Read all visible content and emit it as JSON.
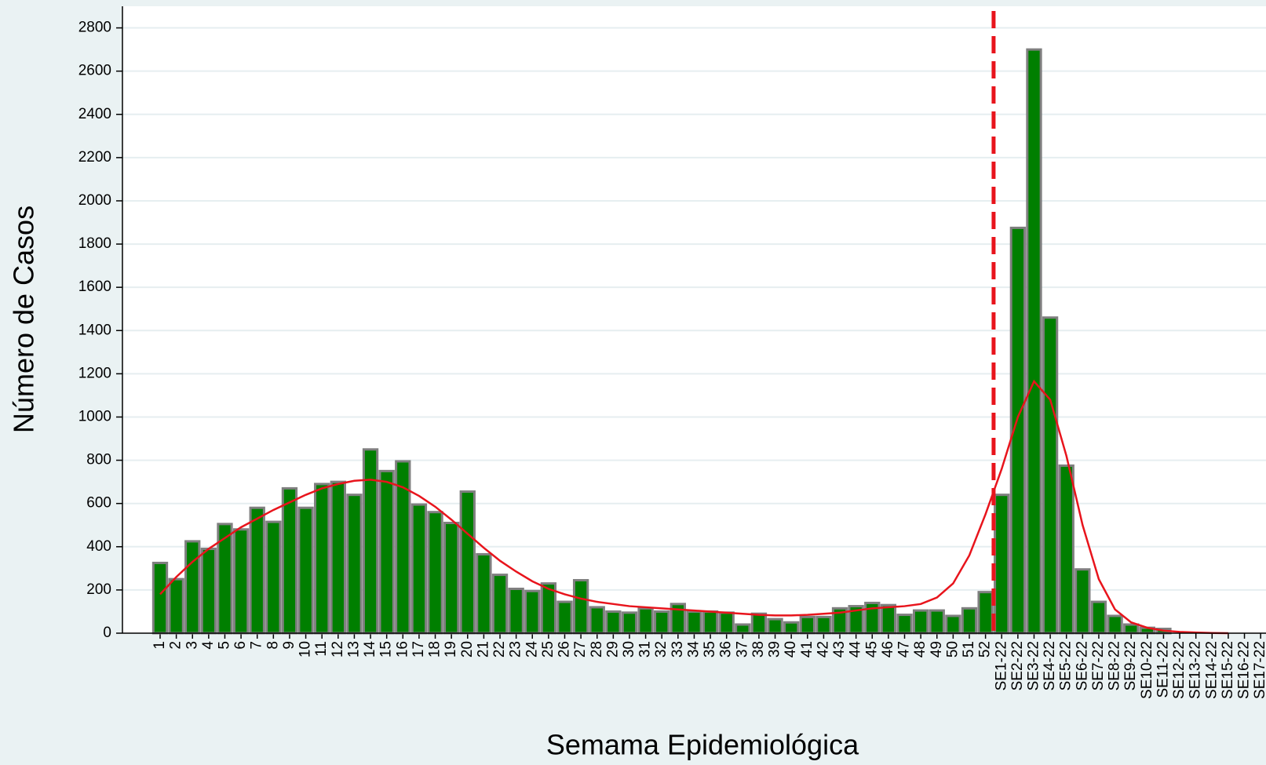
{
  "chart_data": {
    "type": "bar",
    "x_label": "Semama Epidemiológica",
    "y_label": "Número de Casos",
    "categories": [
      "1",
      "2",
      "3",
      "4",
      "5",
      "6",
      "7",
      "8",
      "9",
      "10",
      "11",
      "12",
      "13",
      "14",
      "15",
      "16",
      "17",
      "18",
      "19",
      "20",
      "21",
      "22",
      "23",
      "24",
      "25",
      "26",
      "27",
      "28",
      "29",
      "30",
      "31",
      "32",
      "33",
      "34",
      "35",
      "36",
      "37",
      "38",
      "39",
      "40",
      "41",
      "42",
      "43",
      "44",
      "45",
      "46",
      "47",
      "48",
      "49",
      "50",
      "51",
      "52",
      "SE1-22",
      "SE2-22",
      "SE3-22",
      "SE4-22",
      "SE5-22",
      "SE6-22",
      "SE7-22",
      "SE8-22",
      "SE9-22",
      "SE10-22",
      "SE11-22",
      "SE12-22",
      "SE13-22",
      "SE14-22",
      "SE15-22",
      "SE16-22",
      "SE17-22"
    ],
    "series": [
      {
        "type": "bar",
        "color": "#007f00",
        "values": [
          325,
          250,
          425,
          390,
          505,
          480,
          580,
          515,
          670,
          580,
          690,
          700,
          640,
          850,
          750,
          795,
          595,
          560,
          510,
          655,
          365,
          270,
          205,
          195,
          230,
          145,
          245,
          120,
          100,
          95,
          115,
          100,
          135,
          100,
          100,
          95,
          40,
          90,
          65,
          50,
          75,
          75,
          115,
          125,
          140,
          130,
          85,
          105,
          105,
          80,
          115,
          190,
          640,
          1875,
          2700,
          1460,
          775,
          295,
          145,
          80,
          40,
          25,
          20,
          0,
          0,
          0,
          0,
          0,
          0
        ]
      },
      {
        "type": "line",
        "color": "#e8141c",
        "values": [
          180,
          260,
          330,
          390,
          440,
          490,
          530,
          570,
          605,
          640,
          670,
          690,
          705,
          710,
          700,
          675,
          635,
          585,
          525,
          460,
          395,
          335,
          285,
          240,
          205,
          180,
          160,
          145,
          135,
          125,
          120,
          115,
          110,
          105,
          100,
          95,
          90,
          85,
          82,
          82,
          85,
          90,
          95,
          105,
          115,
          120,
          125,
          135,
          165,
          230,
          360,
          550,
          760,
          1000,
          1165,
          1080,
          820,
          500,
          250,
          110,
          50,
          25,
          12,
          6,
          3,
          1,
          0,
          null,
          null
        ]
      }
    ],
    "ylim": [
      0,
      2900
    ],
    "yticks": [
      0,
      200,
      400,
      600,
      800,
      1000,
      1200,
      1400,
      1600,
      1800,
      2000,
      2200,
      2400,
      2600,
      2800
    ],
    "grid": true
  }
}
